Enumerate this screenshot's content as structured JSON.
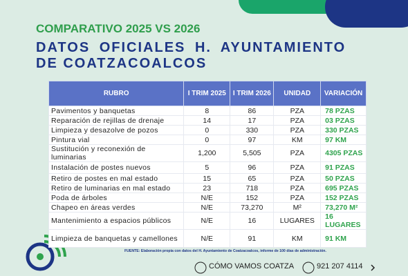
{
  "header": {
    "title": "COMPARATIVO 2025 VS 2026",
    "subtitle_line1": "DATOS OFICIALES H. AYUNTAMIENTO",
    "subtitle_line2": "DE COATZACOALCOS"
  },
  "table": {
    "columns": [
      "RUBRO",
      "I TRIM 2025",
      "I TRIM 2026",
      "UNIDAD",
      "VARIACIÓN"
    ],
    "rows": [
      [
        "Pavimentos y banquetas",
        "8",
        "86",
        "PZA",
        "78 PZAS"
      ],
      [
        "Reparación de rejillas de drenaje",
        "14",
        "17",
        "PZA",
        "03 PZAS"
      ],
      [
        "Limpieza y desazolve de pozos",
        "0",
        "330",
        "PZA",
        "330 PZAS"
      ],
      [
        "Pintura vial",
        "0",
        "97",
        "KM",
        "97 KM"
      ],
      [
        "Sustitución y reconexión de luminarias",
        "1,200",
        "5,505",
        "PZA",
        "4305 PZAS"
      ],
      [
        "Instalación de postes nuevos",
        "5",
        "96",
        "PZA",
        "91 PZAS"
      ],
      [
        "Retiro de postes en mal estado",
        "15",
        "65",
        "PZA",
        "50 PZAS"
      ],
      [
        "Retiro de luminarias en mal estado",
        "23",
        "718",
        "PZA",
        "695 PZAS"
      ],
      [
        "Poda de árboles",
        "N/E",
        "152",
        "PZA",
        "152 PZAS"
      ],
      [
        "Chapeo en áreas verdes",
        "N/E",
        "73,270",
        "M²",
        "73,270 M²"
      ],
      [
        "Mantenimiento a espacios públicos",
        "N/E",
        "16",
        "LUGARES",
        "16 LUGARES"
      ],
      [
        "Limpieza de banquetas y camellones",
        "N/E",
        "91",
        "KM",
        "91 KM"
      ]
    ]
  },
  "footer": {
    "source": "FUENTE: Elaboración propia con datos del H. Ayuntamiento de Coatzacoalcos, informe de 100 días de administración.",
    "facebook": "CÓMO VAMOS COATZA",
    "whatsapp": "921 207 4114"
  }
}
